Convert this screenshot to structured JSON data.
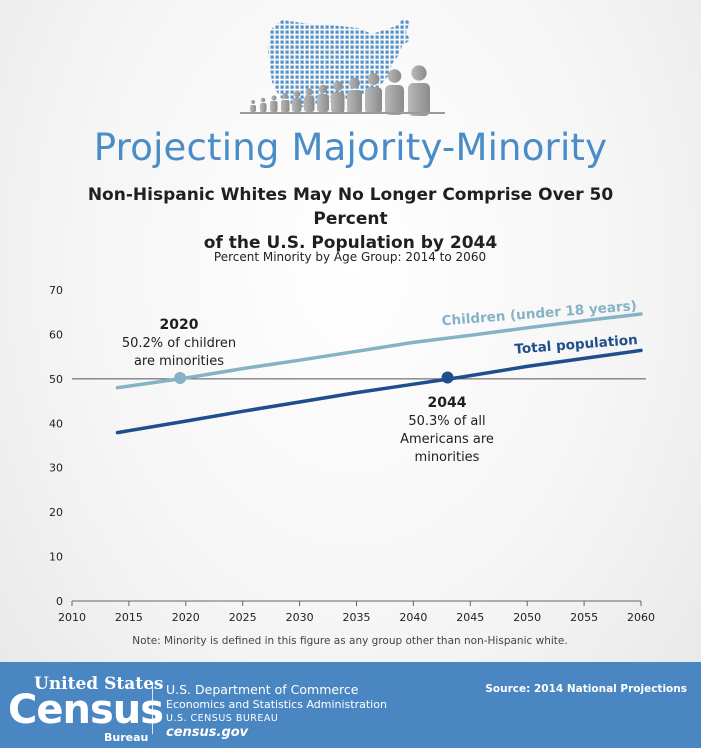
{
  "header": {
    "title": "Projecting Majority-Minority",
    "subtitle_line1": "Non-Hispanic Whites May No Longer Comprise Over 50 Percent",
    "subtitle_line2": "of the U.S. Population by 2044"
  },
  "chart_data": {
    "type": "line",
    "title": "Percent Minority by Age Group: 2014 to 2060",
    "xlim": [
      2010,
      2060
    ],
    "ylim": [
      0,
      70
    ],
    "x_ticks": [
      2010,
      2015,
      2020,
      2025,
      2030,
      2035,
      2040,
      2045,
      2050,
      2055,
      2060
    ],
    "y_ticks": [
      0,
      10,
      20,
      30,
      40,
      50,
      60,
      70
    ],
    "reference_line": 50,
    "series": [
      {
        "name": "Children (under 18 years)",
        "color": "#86b2c6",
        "x": [
          2014,
          2020,
          2025,
          2030,
          2035,
          2040,
          2045,
          2050,
          2055,
          2060
        ],
        "y": [
          48.0,
          50.2,
          52.3,
          54.2,
          56.2,
          58.2,
          59.8,
          61.5,
          63.1,
          64.6
        ]
      },
      {
        "name": "Total population",
        "color": "#1f4e8c",
        "x": [
          2014,
          2020,
          2025,
          2030,
          2035,
          2040,
          2044,
          2050,
          2055,
          2060
        ],
        "y": [
          37.9,
          40.5,
          42.7,
          44.8,
          46.9,
          48.8,
          50.3,
          52.8,
          54.6,
          56.4
        ]
      }
    ],
    "annotations": [
      {
        "year_label": "2020",
        "line1": "50.2% of children",
        "line2": "are minorities",
        "x": 2019.5,
        "y": 50.2,
        "marker_color": "#86b2c6"
      },
      {
        "year_label": "2044",
        "line1": "50.3% of all",
        "line2": "Americans are",
        "line3": "minorities",
        "x": 2043,
        "y": 50.3,
        "marker_color": "#1f4e8c"
      }
    ],
    "note": "Note: Minority is defined in this figure as any group other than non-Hispanic white."
  },
  "footer": {
    "logo_top": "United States",
    "logo_main": "Census",
    "logo_bureau": "Bureau",
    "dept": "U.S. Department of Commerce",
    "admin": "Economics and Statistics Administration",
    "bureau_sc": "U.S. CENSUS BUREAU",
    "site": "census.gov",
    "source": "Source: 2014 National Projections"
  }
}
